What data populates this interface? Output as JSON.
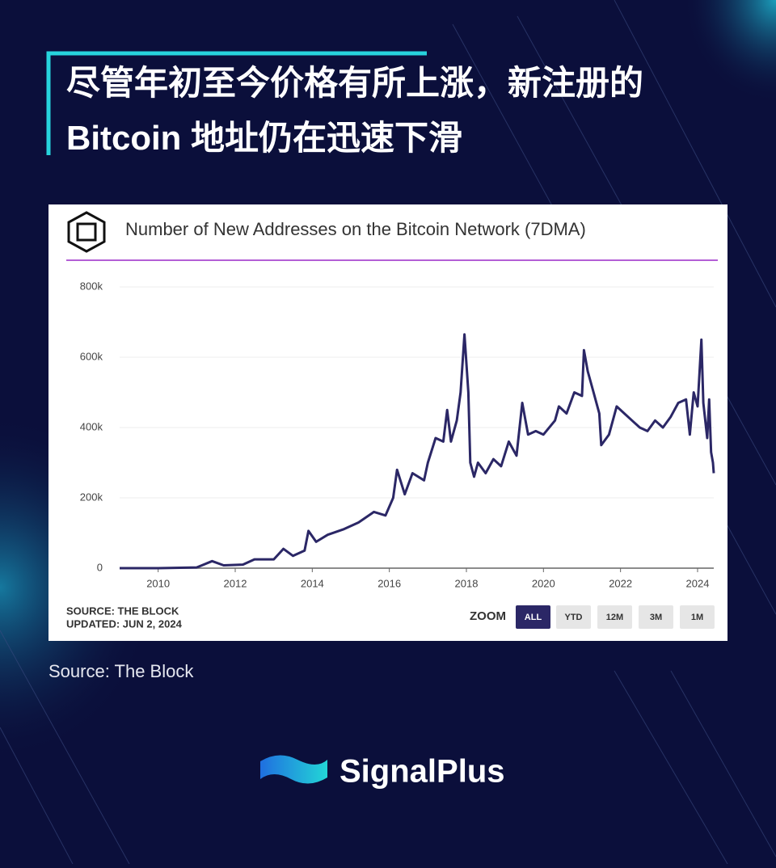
{
  "headline": {
    "lines": [
      "尽管年初至今价格有所上涨，新注册的",
      "Bitcoin 地址仍在迅速下滑"
    ]
  },
  "chart_data": {
    "type": "line",
    "title": "Number of New Addresses on the Bitcoin Network (7DMA)",
    "color": "#2b2766",
    "x": [
      2009.0,
      2010.0,
      2011.0,
      2011.4,
      2011.7,
      2012.2,
      2012.5,
      2013.0,
      2013.25,
      2013.5,
      2013.8,
      2013.9,
      2014.1,
      2014.4,
      2014.8,
      2015.2,
      2015.6,
      2015.9,
      2016.1,
      2016.2,
      2016.4,
      2016.6,
      2016.9,
      2017.0,
      2017.2,
      2017.4,
      2017.5,
      2017.6,
      2017.75,
      2017.85,
      2017.95,
      2018.05,
      2018.1,
      2018.2,
      2018.3,
      2018.5,
      2018.7,
      2018.9,
      2019.1,
      2019.3,
      2019.45,
      2019.6,
      2019.8,
      2020.0,
      2020.3,
      2020.4,
      2020.6,
      2020.8,
      2021.0,
      2021.05,
      2021.15,
      2021.3,
      2021.45,
      2021.5,
      2021.7,
      2021.9,
      2022.1,
      2022.3,
      2022.5,
      2022.7,
      2022.9,
      2023.1,
      2023.3,
      2023.5,
      2023.7,
      2023.8,
      2023.9,
      2024.0,
      2024.1,
      2024.15,
      2024.25,
      2024.3,
      2024.35,
      2024.4,
      2024.42
    ],
    "values": [
      0,
      0,
      2000,
      20000,
      8000,
      10000,
      25000,
      25000,
      55000,
      35000,
      50000,
      106000,
      75000,
      95000,
      110000,
      130000,
      160000,
      150000,
      200000,
      280000,
      210000,
      270000,
      250000,
      300000,
      370000,
      360000,
      450000,
      360000,
      420000,
      500000,
      665000,
      500000,
      300000,
      260000,
      300000,
      270000,
      310000,
      290000,
      360000,
      320000,
      470000,
      380000,
      390000,
      380000,
      420000,
      460000,
      440000,
      500000,
      490000,
      620000,
      560000,
      500000,
      440000,
      350000,
      380000,
      460000,
      440000,
      420000,
      400000,
      390000,
      420000,
      400000,
      430000,
      470000,
      480000,
      380000,
      500000,
      460000,
      650000,
      470000,
      370000,
      480000,
      330000,
      300000,
      270000
    ],
    "xlim": [
      2009.0,
      2024.42
    ],
    "xticks": [
      2010,
      2012,
      2014,
      2016,
      2018,
      2020,
      2022,
      2024
    ],
    "ylim": [
      0,
      800000
    ],
    "yticks": [
      0,
      {
        "value": 200000,
        "label": "200k"
      },
      {
        "value": 400000,
        "label": "400k"
      },
      {
        "value": 600000,
        "label": "600k"
      },
      {
        "value": 800000,
        "label": "800k"
      }
    ],
    "grid": true
  },
  "card_footer": {
    "source": "SOURCE: THE BLOCK",
    "updated": "UPDATED: JUN 2, 2024",
    "zoom_label": "ZOOM",
    "zoom_buttons": [
      "ALL",
      "YTD",
      "12M",
      "3M",
      "1M"
    ]
  },
  "source_note": "Source: The Block",
  "brand": "SignalPlus"
}
